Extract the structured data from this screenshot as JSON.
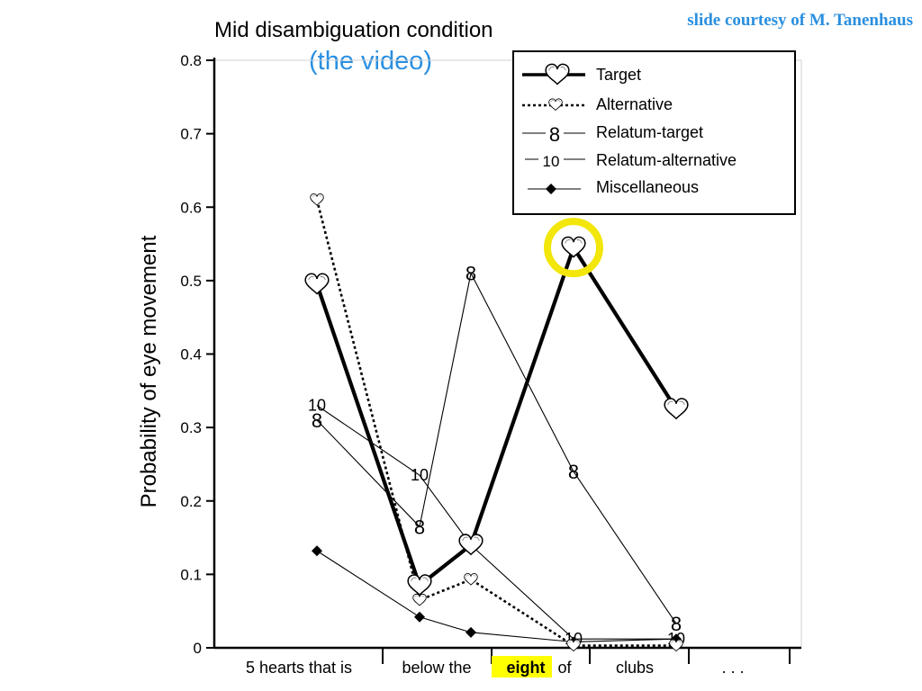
{
  "slide": {
    "credit": "slide courtesy of M. Tanenhaus",
    "highlight_color": "#ffff00",
    "circle_color": "#f2e60a",
    "subtitle_color": "#2a8fe0"
  },
  "chart_data": {
    "type": "line",
    "title": "Mid disambiguation condition",
    "subtitle": "(the video)",
    "ylabel": "Probability of eye movement",
    "xlabel": "",
    "ylim": [
      0,
      0.8
    ],
    "yticks": [
      "0",
      "0.1",
      "0.2",
      "0.3",
      "0.4",
      "0.5",
      "0.6",
      "0.7",
      "0.8"
    ],
    "x_categories": [
      {
        "text": "5 hearts that is"
      },
      {
        "text": "below the"
      },
      {
        "text": "eight",
        "highlight": true
      },
      {
        "text": "of"
      },
      {
        "text": "clubs"
      },
      {
        "text": ". . ."
      }
    ],
    "series": [
      {
        "name": "Target",
        "marker": "heart",
        "style": "bold",
        "x": [
          1,
          2,
          2.5,
          3.5,
          4.5
        ],
        "y": [
          0.495,
          0.085,
          0.14,
          0.545,
          0.325
        ],
        "circled_index": 3
      },
      {
        "name": "Alternative",
        "marker": "heart-small",
        "style": "dotted",
        "x": [
          1,
          2,
          2.5,
          3.5,
          4.5
        ],
        "y": [
          0.61,
          0.065,
          0.093,
          0.003,
          0.003
        ]
      },
      {
        "name": "Relatum-target",
        "marker": "8",
        "style": "thin",
        "x": [
          1,
          2,
          2.5,
          3.5,
          4.5
        ],
        "y": [
          0.31,
          0.165,
          0.51,
          0.24,
          0.033
        ]
      },
      {
        "name": "Relatum-alternative",
        "marker": "10",
        "style": "thin",
        "x": [
          1,
          2,
          2.5,
          3.5,
          4.5
        ],
        "y": [
          0.33,
          0.235,
          0.14,
          0.012,
          0.012
        ]
      },
      {
        "name": "Miscellaneous",
        "marker": "diamond",
        "style": "thin",
        "x": [
          1,
          2,
          2.5,
          3.5,
          4.5
        ],
        "y": [
          0.132,
          0.042,
          0.021,
          0.008,
          0.012
        ]
      }
    ],
    "legend": {
      "position": "top-right",
      "label_8": "8",
      "label_10": "10"
    }
  }
}
